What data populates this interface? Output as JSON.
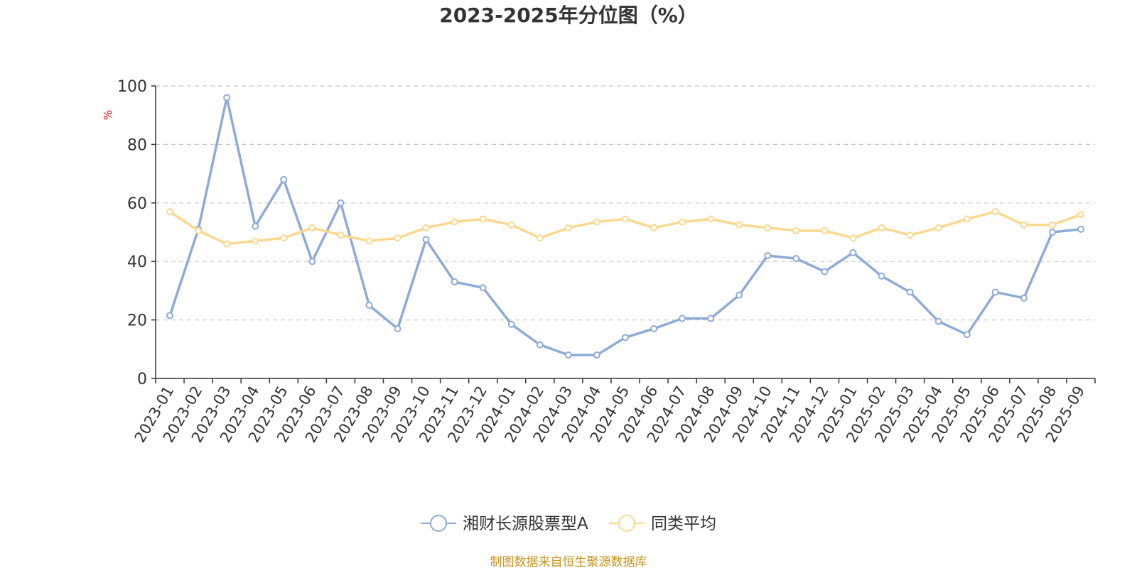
{
  "chart_data": {
    "type": "line",
    "title": "2023-2025年分位图（%）",
    "ylabel": "%",
    "xlabel": "",
    "ylim": [
      0,
      100
    ],
    "yticks": [
      0,
      20,
      40,
      60,
      80,
      100
    ],
    "grid": true,
    "legend_position": "bottom",
    "categories": [
      "2023-01",
      "2023-02",
      "2023-03",
      "2023-04",
      "2023-05",
      "2023-06",
      "2023-07",
      "2023-08",
      "2023-09",
      "2023-10",
      "2023-11",
      "2023-12",
      "2024-01",
      "2024-02",
      "2024-03",
      "2024-04",
      "2024-05",
      "2024-06",
      "2024-07",
      "2024-08",
      "2024-09",
      "2024-10",
      "2024-11",
      "2024-12",
      "2025-01",
      "2025-02",
      "2025-03",
      "2025-04",
      "2025-05",
      "2025-06",
      "2025-07",
      "2025-08",
      "2025-09"
    ],
    "series": [
      {
        "name": "湘财长源股票型A",
        "color": "#8eabd8",
        "values": [
          21.5,
          51,
          96,
          52,
          68,
          40,
          60,
          25,
          17,
          47.5,
          33,
          31,
          18.5,
          11.5,
          8,
          8,
          14,
          17,
          20.5,
          20.5,
          28.5,
          42,
          41,
          36.5,
          43,
          35,
          29.5,
          19.5,
          15,
          29.5,
          27.5,
          50,
          51
        ]
      },
      {
        "name": "同类平均",
        "color": "#fcd88f",
        "values": [
          57,
          50.5,
          46,
          47,
          48,
          51.5,
          49,
          47,
          48,
          51.5,
          53.5,
          54.5,
          52.5,
          48,
          51.5,
          53.5,
          54.5,
          51.5,
          53.5,
          54.5,
          52.5,
          51.5,
          50.5,
          50.5,
          48,
          51.5,
          49,
          51.5,
          54.5,
          57,
          52.5,
          52.5,
          56
        ]
      }
    ]
  },
  "source": "制图数据来自恒生聚源数据库"
}
